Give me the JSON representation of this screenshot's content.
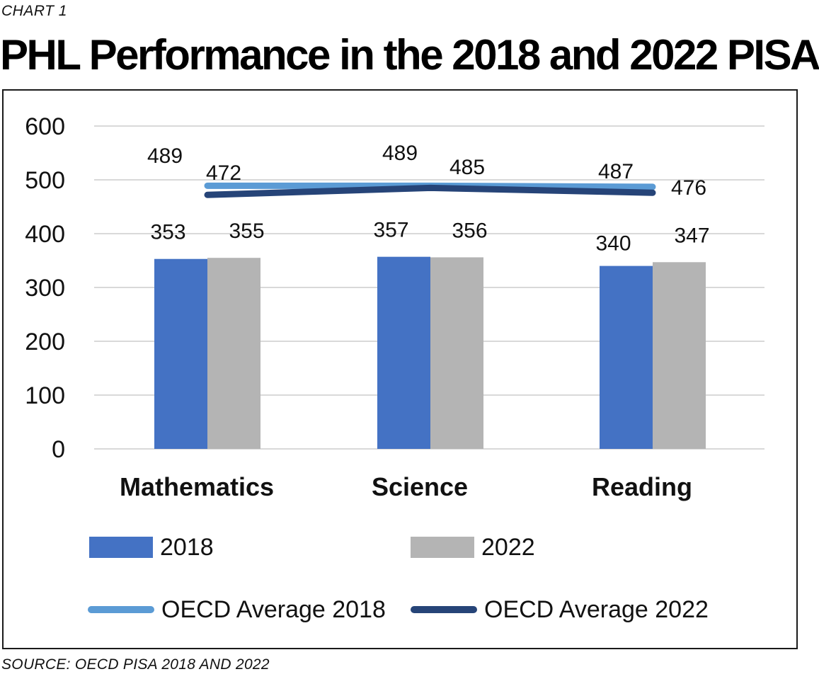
{
  "header": {
    "kicker": "CHART 1",
    "title": "PHL Performance in the 2018 and 2022 PISA"
  },
  "footer": {
    "source": "SOURCE: OECD PISA 2018 AND 2022"
  },
  "chart_data": {
    "type": "bar",
    "categories": [
      "Mathematics",
      "Science",
      "Reading"
    ],
    "ylim": [
      0,
      600
    ],
    "yticks": [
      "0",
      "100",
      "200",
      "300",
      "400",
      "500",
      "600"
    ],
    "grid": true,
    "legend_position": "bottom",
    "series": [
      {
        "name": "2018",
        "kind": "bar",
        "color": "#4472c4",
        "values": [
          353,
          357,
          340
        ]
      },
      {
        "name": "2022",
        "kind": "bar",
        "color": "#b4b4b4",
        "values": [
          355,
          356,
          347
        ]
      },
      {
        "name": "OECD Average 2018",
        "kind": "line",
        "color": "#5b9bd5",
        "values": [
          489,
          489,
          487
        ]
      },
      {
        "name": "OECD Average 2022",
        "kind": "line",
        "color": "#264478",
        "values": [
          472,
          485,
          476
        ]
      }
    ]
  }
}
